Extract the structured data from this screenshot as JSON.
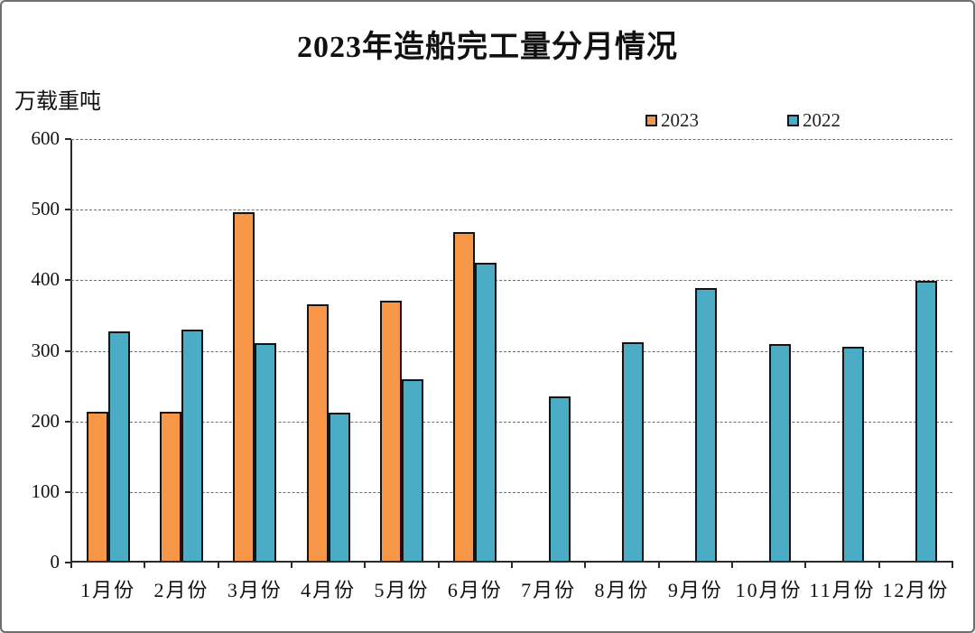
{
  "window": {
    "background": "#ffffff",
    "frame_border_color": "#6e6e6e"
  },
  "colors": {
    "series_2023": "#F79646",
    "series_2022": "#4BACC6",
    "bar_border": "#141414",
    "axis": "#2b2b2b",
    "gridline": "#6f6f6f",
    "text": "#111111"
  },
  "chart_data": {
    "type": "bar",
    "title": "2023年造船完工量分月情况",
    "ylabel": "万载重吨",
    "xlabel": "",
    "categories": [
      "1月份",
      "2月份",
      "3月份",
      "4月份",
      "5月份",
      "6月份",
      "7月份",
      "8月份",
      "9月份",
      "10月份",
      "11月份",
      "12月份"
    ],
    "series": [
      {
        "name": "2023",
        "color": "#F79646",
        "values": [
          211,
          211,
          494,
          363,
          368,
          466,
          null,
          null,
          null,
          null,
          null,
          null
        ]
      },
      {
        "name": "2022",
        "color": "#4BACC6",
        "values": [
          325,
          327,
          308,
          210,
          257,
          422,
          233,
          309,
          386,
          307,
          303,
          397
        ]
      }
    ],
    "ylim": [
      0,
      600
    ],
    "yticks": [
      0,
      100,
      200,
      300,
      400,
      500,
      600
    ],
    "grid": "horizontal-dashed",
    "legend_position": "top-right",
    "legend_entries": [
      "2023",
      "2022"
    ]
  }
}
